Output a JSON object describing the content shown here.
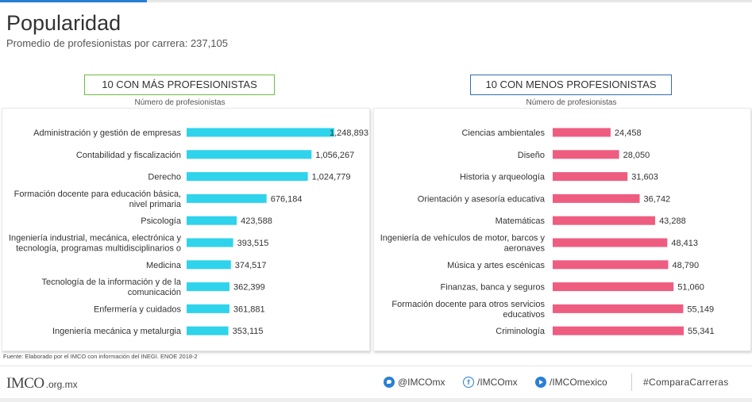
{
  "header": {
    "title": "Popularidad",
    "subtitle": "Promedio de profesionistas por carrera: 237,105"
  },
  "source": "Fuente: Elaborado por el IMCO con información del INEGI. ENOE 2018-2",
  "footer": {
    "logo": "IMCO",
    "domain": ".org.mx",
    "twitter": "@IMCOmx",
    "facebook": "/IMCOmx",
    "youtube": "/IMCOmexico",
    "hashtag": "#ComparaCarreras"
  },
  "colors": {
    "left_bar": "#2fd3ec",
    "right_bar": "#ee5d80",
    "left_border": "#6cbd45",
    "right_border": "#2f6fb5"
  },
  "chart_data": [
    {
      "type": "bar",
      "orientation": "horizontal",
      "title": "10 CON MÁS PROFESIONISTAS",
      "xlabel": "Número de profesionistas",
      "categories": [
        [
          "Administración y gestión de empresas"
        ],
        [
          "Contabilidad y fiscalización"
        ],
        [
          "Derecho"
        ],
        [
          "Formación docente para educación básica,",
          "nivel primaria"
        ],
        [
          "Psicología"
        ],
        [
          "Ingeniería industrial, mecánica, electrónica y",
          "tecnología, programas multidisciplinarios o"
        ],
        [
          "Medicina"
        ],
        [
          "Tecnología de la información y de la",
          "comunicación"
        ],
        [
          "Enfermería y cuidados"
        ],
        [
          "Ingeniería mecánica y metalurgia"
        ]
      ],
      "values": [
        1248893,
        1056267,
        1024779,
        676184,
        423588,
        393515,
        374517,
        362399,
        361881,
        353115
      ],
      "value_labels": [
        "1,248,893",
        "1,056,267",
        "1,024,779",
        "676,184",
        "423,588",
        "393,515",
        "374,517",
        "362,399",
        "361,881",
        "353,115"
      ],
      "xlim": [
        0,
        1248893
      ]
    },
    {
      "type": "bar",
      "orientation": "horizontal",
      "title": "10 CON MENOS PROFESIONISTAS",
      "xlabel": "Número de profesionistas",
      "categories": [
        [
          "Ciencias ambientales"
        ],
        [
          "Diseño"
        ],
        [
          "Historia y arqueología"
        ],
        [
          "Orientación y asesoría educativa"
        ],
        [
          "Matemáticas"
        ],
        [
          "Ingeniería de vehículos de motor, barcos y",
          "aeronaves"
        ],
        [
          "Música y artes escénicas"
        ],
        [
          "Finanzas, banca y seguros"
        ],
        [
          "Formación docente para otros servicios",
          "educativos"
        ],
        [
          "Criminología"
        ]
      ],
      "values": [
        24458,
        28050,
        31603,
        36742,
        43288,
        48413,
        48790,
        51060,
        55149,
        55341
      ],
      "value_labels": [
        "24,458",
        "28,050",
        "31,603",
        "36,742",
        "43,288",
        "48,413",
        "48,790",
        "51,060",
        "55,149",
        "55,341"
      ],
      "xlim": [
        0,
        55341
      ]
    }
  ]
}
